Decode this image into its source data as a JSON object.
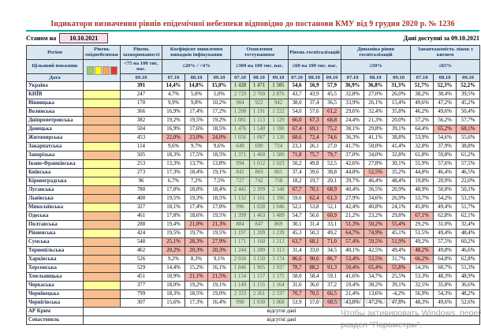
{
  "title": "Індикатори визначення рівнів епідемічної небезпеки відповідно до постанови КМУ від 9 грудня 2020 р. № 1236",
  "as_of": {
    "label": "Станом на",
    "date": "10.10.2021"
  },
  "data_available": "Дані доступні за 09.10.2021",
  "no_data_text": "відсутні дані",
  "colors": {
    "title": "#a5352c",
    "teal_rule": "#00a99d",
    "header_bg": "#d9e7f3",
    "header_text": "#17375e",
    "asof_box_bg": "#f6e0ec",
    "level_yellow": "#ffff99",
    "level_orange": "#fabf8f",
    "red_cell": "#f4b8b0",
    "green_cell": "#d8e8ce"
  },
  "legend": {
    "name": "epidemic-danger-levels",
    "colors": [
      "#92d050",
      "#ffff00",
      "#fba550",
      "#e0392e"
    ]
  },
  "header": {
    "region": "Регіон",
    "target_label": "Цільовий показник",
    "date_label": "Дата",
    "columns": [
      {
        "label": "Рівень епіднебезпеки",
        "target": "",
        "dates": []
      },
      {
        "label": "Рівень захворюваності",
        "target": "<75 на 100 тис. нас.",
        "dates": [
          "09.10"
        ]
      },
      {
        "label": "Коефіцієнт виявлення випадків інфікування",
        "target": "≤20% / <4%",
        "dates": [
          "07.10",
          "08.10",
          "09.10"
        ]
      },
      {
        "label": "Охоплення тестуванням",
        "target": "≥300 на 100 тис. нас.",
        "dates": [
          "07.10",
          "08.10",
          "09.10"
        ]
      },
      {
        "label": "Рівень госпіталізацій",
        "target": "≤60 на 100 тис. нас.",
        "dates": [
          "07.10",
          "08.10",
          "09.10"
        ]
      },
      {
        "label": "Динаміка рівня госпіталізацій",
        "target": "≤50%",
        "dates": [
          "07.10",
          "08.10",
          "09.10"
        ]
      },
      {
        "label": "Завантаженість ліжок з киснем",
        "target": "≤65%",
        "dates": [
          "07.10",
          "08.10",
          "09.10"
        ]
      }
    ]
  },
  "rows": [
    {
      "name": "Україна",
      "bold": true,
      "level": "",
      "inc": "391",
      "coef": [
        "14,4%",
        "14,8%",
        "15,0%"
      ],
      "test": [
        "1 428",
        "1 471",
        "1 505"
      ],
      "hosp": [
        "54,6",
        "56,9",
        "57,9"
      ],
      "dyn": [
        "36,9%",
        "36,8%",
        "31,3%"
      ],
      "bed": [
        "51,7%",
        "52,3%",
        "52,2%"
      ]
    },
    {
      "name": "КИЇВ",
      "level": "y",
      "inc": "247",
      "coef": [
        "4,7%",
        "5,0%",
        "5,0%"
      ],
      "test": [
        "2 729",
        "2 769",
        "2 876"
      ],
      "hosp": [
        "43,7",
        "43,9",
        "45,5"
      ],
      "dyn": [
        "32,8%",
        "27,0%",
        "26,0%"
      ],
      "bed": [
        "38,2%",
        "38,4%",
        "39,5%"
      ]
    },
    {
      "name": "Вінницька",
      "level": "y",
      "inc": "170",
      "coef": [
        "9,9%",
        "9,8%",
        "10,2%"
      ],
      "test": [
        "904",
        "922",
        "942"
      ],
      "hosp": [
        "38,0",
        "37,4",
        "36,5"
      ],
      "dyn": [
        "33,9%",
        "26,1%",
        "15,4%"
      ],
      "bed": [
        "49,6%",
        "47,2%",
        "45,2%"
      ]
    },
    {
      "name": "Волинська",
      "level": "o",
      "inc": "366",
      "coef": [
        "16,9%",
        "17,4%",
        "17,2%"
      ],
      "test": [
        "1 208",
        "1 191",
        "1 222"
      ],
      "hosp": [
        "54,0",
        "57,6",
        "61,2"
      ],
      "hh": [
        0,
        0,
        1
      ],
      "dyn": [
        "29,6%",
        "32,4%",
        "35,8%"
      ],
      "bed": [
        "46,2%",
        "49,6%",
        "50,4%"
      ]
    },
    {
      "name": "Дніпропетровська",
      "level": "o",
      "inc": "382",
      "coef": [
        "19,2%",
        "19,5%",
        "19,2%"
      ],
      "test": [
        "1 081",
        "1 113",
        "1 129"
      ],
      "hosp": [
        "66,0",
        "67,3",
        "68,8"
      ],
      "hh": [
        1,
        1,
        1
      ],
      "dyn": [
        "24,4%",
        "21,3%",
        "20,0%"
      ],
      "bed": [
        "57,2%",
        "56,2%",
        "57,7%"
      ]
    },
    {
      "name": "Донецька",
      "level": "o",
      "inc": "504",
      "coef": [
        "16,9%",
        "17,6%",
        "18,5%"
      ],
      "test": [
        "1 476",
        "1 540",
        "1 590"
      ],
      "hosp": [
        "67,4",
        "69,1",
        "75,2"
      ],
      "hh": [
        1,
        1,
        1
      ],
      "dyn": [
        "38,1%",
        "29,8%",
        "39,1%"
      ],
      "bed": [
        "64,4%",
        "65,2%",
        "68,1%"
      ],
      "bh": [
        0,
        1,
        1
      ]
    },
    {
      "name": "Житомирська",
      "level": "o",
      "inc": "453",
      "coef": [
        "22,0%",
        "23,0%",
        "24,0%"
      ],
      "ch": [
        1,
        1,
        1
      ],
      "test": [
        "1 056",
        "1 087",
        "1 126"
      ],
      "hosp": [
        "68,6",
        "72,4",
        "74,6"
      ],
      "hh": [
        1,
        1,
        1
      ],
      "dyn": [
        "36,3%",
        "41,1%",
        "38,8%"
      ],
      "bed": [
        "53,9%",
        "54,6%",
        "55,6%"
      ]
    },
    {
      "name": "Закарпатська",
      "level": "y",
      "inc": "114",
      "coef": [
        "9,6%",
        "9,7%",
        "9,6%"
      ],
      "test": [
        "649",
        "690",
        "724"
      ],
      "hosp": [
        "23,3",
        "26,1",
        "27,0"
      ],
      "dyn": [
        "41,7%",
        "50,0%",
        "41,4%"
      ],
      "bed": [
        "32,8%",
        "37,9%",
        "38,8%"
      ]
    },
    {
      "name": "Запорізька",
      "level": "o",
      "inc": "505",
      "coef": [
        "18,3%",
        "17,5%",
        "18,5%"
      ],
      "test": [
        "1 371",
        "1 460",
        "1 580"
      ],
      "hosp": [
        "71,8",
        "75,7",
        "79,7"
      ],
      "hh": [
        1,
        1,
        1
      ],
      "dyn": [
        "37,0%",
        "34,0%",
        "32,8%"
      ],
      "bed": [
        "61,8%",
        "59,8%",
        "61,2%"
      ]
    },
    {
      "name": "Івано-Франківська",
      "level": "y",
      "inc": "253",
      "coef": [
        "13,3%",
        "13,7%",
        "13,8%"
      ],
      "test": [
        "994",
        "1 012",
        "1 023"
      ],
      "hosp": [
        "50,2",
        "49,8",
        "52,5"
      ],
      "dyn": [
        "42,6%",
        "27,8%",
        "30,1%"
      ],
      "bed": [
        "55,9%",
        "57,6%",
        "57,5%"
      ]
    },
    {
      "name": "Київська",
      "level": "y",
      "inc": "273",
      "coef": [
        "17,3%",
        "18,4%",
        "19,1%"
      ],
      "test": [
        "841",
        "869",
        "865"
      ],
      "hosp": [
        "37,4",
        "39,6",
        "38,8"
      ],
      "dyn": [
        "44,8%",
        "52,5%",
        "35,2%"
      ],
      "dh": [
        0,
        1,
        0
      ],
      "bed": [
        "44,8%",
        "46,4%",
        "46,5%"
      ]
    },
    {
      "name": "Кіровоградська",
      "level": "y",
      "inc": "96",
      "coef": [
        "6,7%",
        "7,2%",
        "7,5%"
      ],
      "test": [
        "727",
        "742",
        "758"
      ],
      "hosp": [
        "18,2",
        "19,7",
        "20,1"
      ],
      "dyn": [
        "39,7%",
        "46,4%",
        "48,4%"
      ],
      "bed": [
        "19,8%",
        "20,9%",
        "22,0%"
      ]
    },
    {
      "name": "Луганська",
      "level": "o",
      "inc": "780",
      "coef": [
        "17,0%",
        "18,0%",
        "18,4%"
      ],
      "test": [
        "2 445",
        "2 399",
        "2 348"
      ],
      "hosp": [
        "67,7",
        "70,1",
        "68,9"
      ],
      "hh": [
        1,
        1,
        1
      ],
      "dyn": [
        "40,4%",
        "36,5%",
        "20,9%"
      ],
      "bed": [
        "48,9%",
        "50,0%",
        "50,1%"
      ]
    },
    {
      "name": "Львівська",
      "level": "o",
      "inc": "400",
      "coef": [
        "19,5%",
        "19,3%",
        "18,5%"
      ],
      "test": [
        "1 132",
        "1 161",
        "1 196"
      ],
      "hosp": [
        "59,6",
        "62,4",
        "61,3"
      ],
      "hh": [
        0,
        1,
        1
      ],
      "dyn": [
        "27,9%",
        "34,6%",
        "26,9%"
      ],
      "bed": [
        "53,7%",
        "54,2%",
        "53,1%"
      ]
    },
    {
      "name": "Миколаївська",
      "level": "y",
      "inc": "327",
      "coef": [
        "18,1%",
        "17,4%",
        "17,0%"
      ],
      "test": [
        "996",
        "1 028",
        "1 046"
      ],
      "hosp": [
        "52,1",
        "53,8",
        "52,1"
      ],
      "dyn": [
        "42,4%",
        "40,8%",
        "24,1%"
      ],
      "bed": [
        "45,8%",
        "49,4%",
        "51,7%"
      ]
    },
    {
      "name": "Одеська",
      "level": "o",
      "inc": "461",
      "coef": [
        "17,8%",
        "18,6%",
        "19,5%"
      ],
      "test": [
        "1 399",
        "1 463",
        "1 489"
      ],
      "hosp": [
        "54,7",
        "56,6",
        "60,9"
      ],
      "hh": [
        0,
        0,
        1
      ],
      "dyn": [
        "21,2%",
        "23,2%",
        "29,8%"
      ],
      "bed": [
        "67,1%",
        "62,8%",
        "62,1%"
      ],
      "bh": [
        1,
        0,
        0
      ]
    },
    {
      "name": "Полтавська",
      "level": "o",
      "inc": "288",
      "coef": [
        "19,4%",
        "21,0%",
        "21,3%"
      ],
      "ch": [
        0,
        1,
        1
      ],
      "test": [
        "884",
        "847",
        "869"
      ],
      "hosp": [
        "30,1",
        "31,4",
        "33,1"
      ],
      "dyn": [
        "51,3%",
        "50,2%",
        "55,4%"
      ],
      "dh": [
        1,
        1,
        1
      ],
      "bed": [
        "29,2%",
        "31,0%",
        "32,4%"
      ]
    },
    {
      "name": "Рівненська",
      "level": "y",
      "inc": "424",
      "coef": [
        "19,5%",
        "19,7%",
        "19,5%"
      ],
      "test": [
        "1 197",
        "1 209",
        "1 239"
      ],
      "hosp": [
        "45,3",
        "50,3",
        "49,2"
      ],
      "dyn": [
        "64,7%",
        "74,9%",
        "45,1%"
      ],
      "dh": [
        1,
        1,
        0
      ],
      "bed": [
        "51,5%",
        "49,4%",
        "48,4%"
      ]
    },
    {
      "name": "Сумська",
      "level": "o",
      "inc": "548",
      "coef": [
        "25,1%",
        "28,3%",
        "27,9%"
      ],
      "ch": [
        1,
        1,
        1
      ],
      "test": [
        "1 171",
        "1 160",
        "1 213"
      ],
      "hosp": [
        "63,7",
        "68,1",
        "71,0"
      ],
      "hh": [
        1,
        1,
        1
      ],
      "dyn": [
        "57,4%",
        "59,5%",
        "51,9%"
      ],
      "dh": [
        1,
        1,
        1
      ],
      "bed": [
        "49,2%",
        "57,5%",
        "60,2%"
      ]
    },
    {
      "name": "Тернопільська",
      "level": "o",
      "inc": "462",
      "coef": [
        "20,2%",
        "20,3%",
        "20,3%"
      ],
      "ch": [
        1,
        1,
        1
      ],
      "test": [
        "1 244",
        "1 289",
        "1 313"
      ],
      "hosp": [
        "31,4",
        "33,0",
        "34,5"
      ],
      "dyn": [
        "40,1%",
        "42,5%",
        "49,4%"
      ],
      "bed": [
        "48,2%",
        "49,8%",
        "46,6%"
      ],
      "bh": [
        1,
        0,
        0
      ]
    },
    {
      "name": "Харківська",
      "level": "o",
      "inc": "526",
      "coef": [
        "9,2%",
        "8,3%",
        "9,1%"
      ],
      "test": [
        "2 916",
        "3 150",
        "3 174"
      ],
      "hosp": [
        "86,6",
        "90,6",
        "86,7"
      ],
      "hh": [
        1,
        1,
        1
      ],
      "dyn": [
        "53,4%",
        "53,5%",
        "31,7%"
      ],
      "dh": [
        1,
        1,
        0
      ],
      "bed": [
        "66,2%",
        "64,8%",
        "62,8%"
      ],
      "bh": [
        1,
        0,
        0
      ]
    },
    {
      "name": "Херсонська",
      "level": "o",
      "inc": "529",
      "coef": [
        "14,4%",
        "15,2%",
        "16,1%"
      ],
      "test": [
        "1 846",
        "1 905",
        "1 937"
      ],
      "hosp": [
        "78,7",
        "88,2",
        "91,3"
      ],
      "hh": [
        1,
        1,
        1
      ],
      "dyn": [
        "50,4%",
        "65,4%",
        "55,8%"
      ],
      "dh": [
        1,
        1,
        1
      ],
      "bed": [
        "54,3%",
        "60,7%",
        "51,3%"
      ]
    },
    {
      "name": "Хмельницька",
      "level": "o",
      "inc": "451",
      "coef": [
        "18,9%",
        "21,1%",
        "21,5%"
      ],
      "ch": [
        0,
        1,
        1
      ],
      "test": [
        "1 154",
        "1 157",
        "1 175"
      ],
      "hosp": [
        "58,0",
        "58,4",
        "59,1"
      ],
      "dyn": [
        "41,6%",
        "34,7%",
        "25,5%"
      ],
      "bed": [
        "53,3%",
        "48,3%",
        "48,9%"
      ]
    },
    {
      "name": "Черкаська",
      "level": "y",
      "inc": "377",
      "coef": [
        "18,0%",
        "19,2%",
        "19,1%"
      ],
      "test": [
        "1 149",
        "1 155",
        "1 164"
      ],
      "hosp": [
        "31,6",
        "36,0",
        "37,2"
      ],
      "dyn": [
        "19,4%",
        "38,2%",
        "39,1%"
      ],
      "bed": [
        "32,5%",
        "35,8%",
        "36,6%"
      ]
    },
    {
      "name": "Чернівецька",
      "level": "o",
      "inc": "799",
      "coef": [
        "18,3%",
        "18,5%",
        "19,0%"
      ],
      "test": [
        "2 333",
        "2 361",
        "2 337"
      ],
      "hosp": [
        "70,7",
        "70,5",
        "66,5"
      ],
      "hh": [
        1,
        1,
        1
      ],
      "dyn": [
        "21,4%",
        "13,6%",
        "-4,2%"
      ],
      "bed": [
        "56,9%",
        "54,3%",
        "48,2%"
      ]
    },
    {
      "name": "Чернігівська",
      "level": "o",
      "inc": "307",
      "coef": [
        "15,6%",
        "17,3%",
        "16,4%"
      ],
      "test": [
        "998",
        "1 030",
        "1 068"
      ],
      "hosp": [
        "53,9",
        "57,6",
        "60,5"
      ],
      "hh": [
        0,
        0,
        1
      ],
      "dyn": [
        "43,0%",
        "47,2%",
        "47,8%"
      ],
      "bed": [
        "48,3%",
        "49,6%",
        "52,6%"
      ]
    },
    {
      "name": "АР Крим",
      "nodata": true
    },
    {
      "name": "Севастополь",
      "nodata": true
    }
  ],
  "watermark": {
    "line1": "Активация Windows",
    "line2": "Чтобы активировать Windows, перейдите в",
    "line3": "раздел \"Параметры\"."
  }
}
